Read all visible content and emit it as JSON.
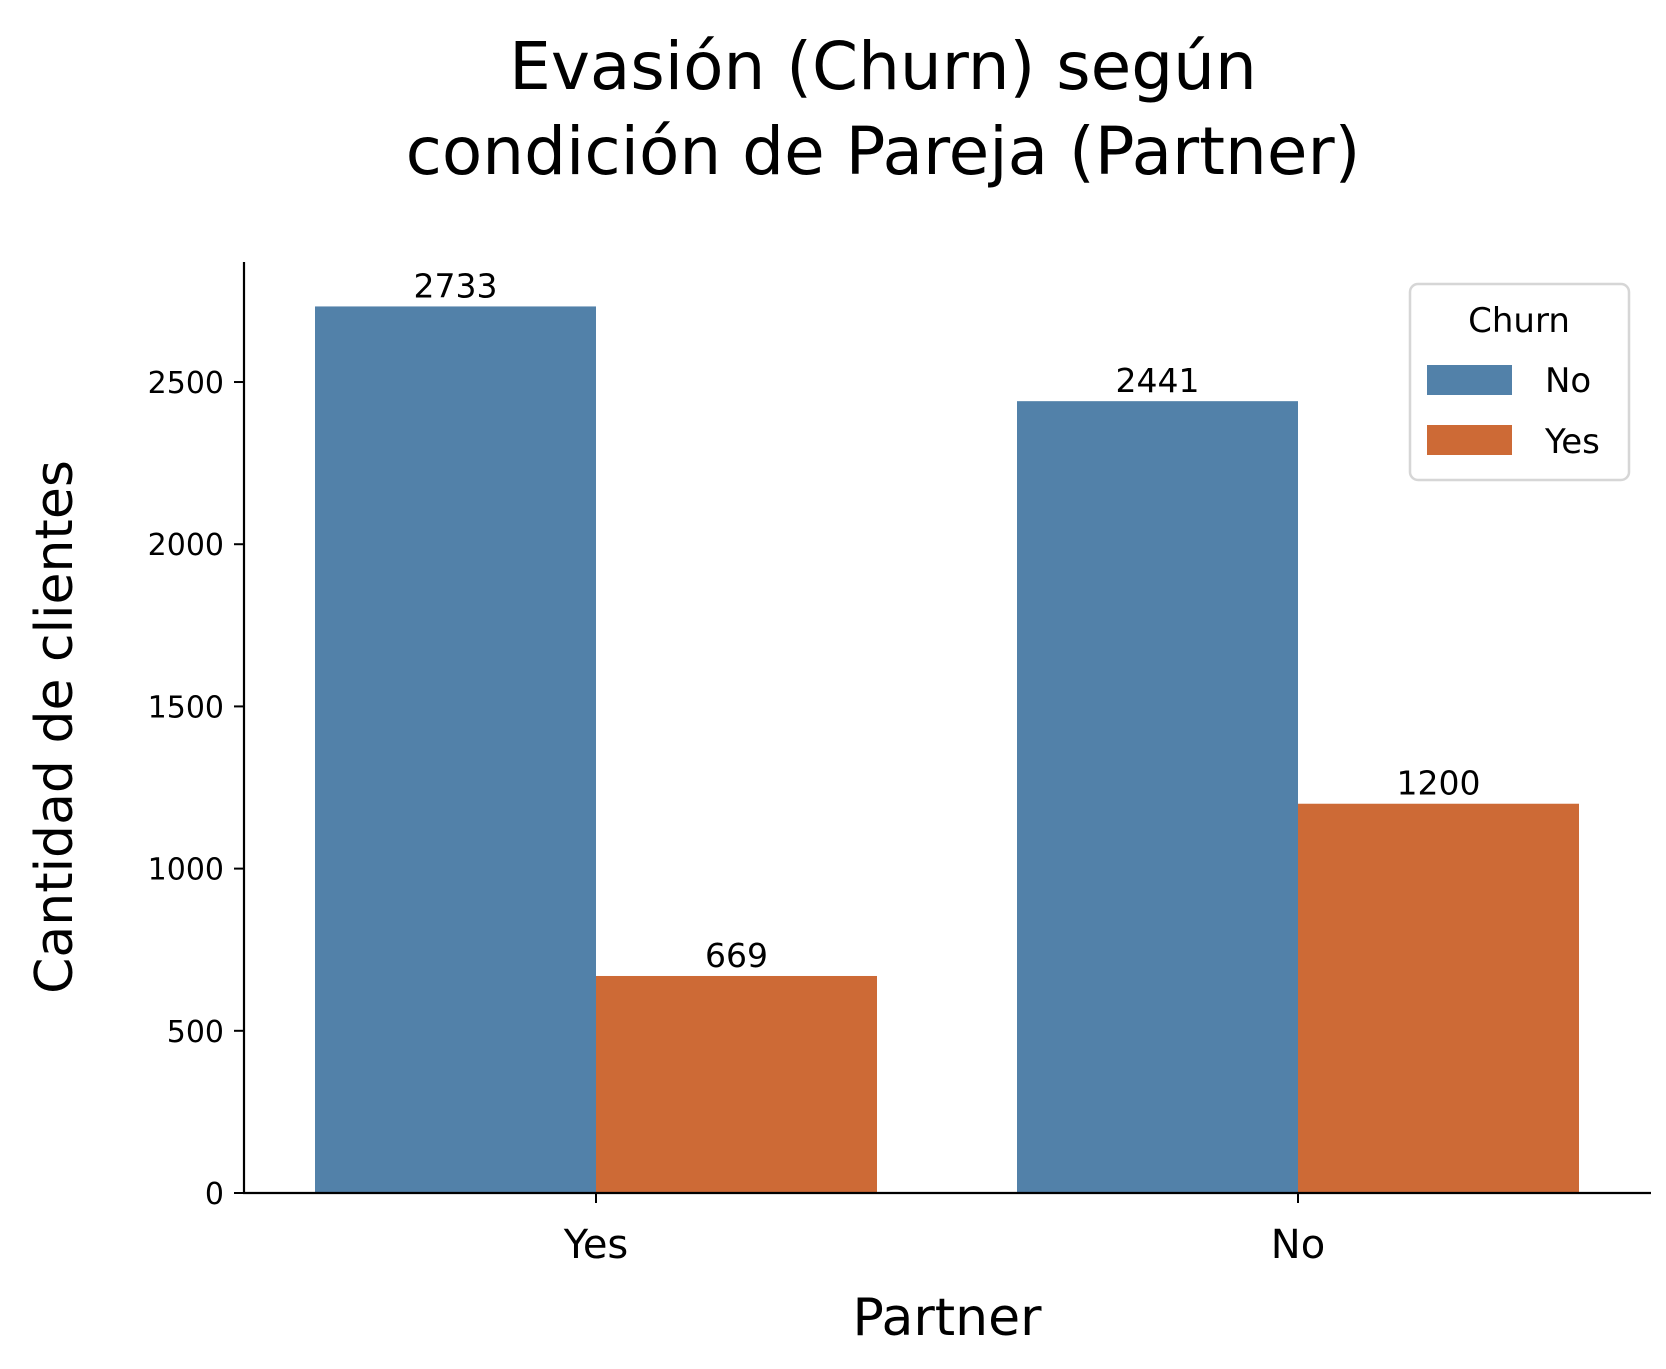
{
  "chart_data": {
    "type": "bar",
    "title": [
      "Evasión (Churn) según",
      "condición de Pareja (Partner)"
    ],
    "xlabel": "Partner",
    "ylabel": "Cantidad de clientes",
    "categories": [
      "Yes",
      "No"
    ],
    "series": [
      {
        "name": "No",
        "values": [
          2733,
          2441
        ],
        "color": "#5281a9"
      },
      {
        "name": "Yes",
        "values": [
          669,
          1200
        ],
        "color": "#cd6a36"
      }
    ],
    "ylim": [
      0,
      2870
    ],
    "yticks": [
      0,
      500,
      1000,
      1500,
      2000,
      2500
    ],
    "legend": {
      "title": "Churn",
      "position": "top-right"
    },
    "grid": false
  }
}
